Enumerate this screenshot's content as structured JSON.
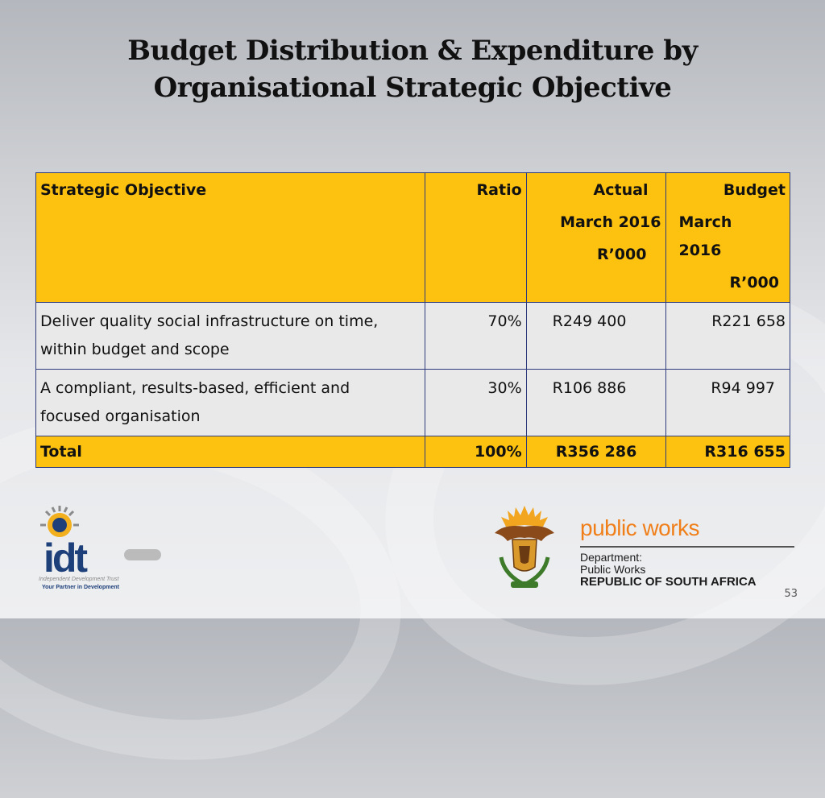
{
  "title": {
    "line1": "Budget Distribution & Expenditure by",
    "line2": "Organisational Strategic Objective"
  },
  "table": {
    "headers": {
      "objective": "Strategic Objective",
      "ratio": "Ratio",
      "actual": [
        "Actual",
        "March 2016",
        "R’000"
      ],
      "budget": [
        "Budget",
        "March",
        "2016",
        "R’000"
      ]
    },
    "rows": [
      {
        "objective": [
          "Deliver quality social infrastructure on time,",
          "within budget and scope"
        ],
        "ratio": "70%",
        "actual": "R249 400",
        "budget": "R221 658"
      },
      {
        "objective": [
          "A compliant, results-based, efficient and",
          "focused organisation"
        ],
        "ratio": "30%",
        "actual": "R106 886",
        "budget": "R94 997"
      }
    ],
    "total": {
      "label": "Total",
      "ratio": "100%",
      "actual": "R356 286",
      "budget": "R316 655"
    }
  },
  "logos": {
    "idt": {
      "text": "idt",
      "subtitle": "Independent Development Trust",
      "tagline": "Your Partner in Development"
    },
    "public_works": {
      "title": "public works",
      "line1": "Department:",
      "line2": "Public Works",
      "line3": "REPUBLIC OF SOUTH AFRICA"
    }
  },
  "page_number": "53",
  "colors": {
    "header_fill": "#fdc110",
    "border": "#2e3b7c",
    "row_fill": "#e9e9ea",
    "pw_orange": "#f07f1a"
  }
}
